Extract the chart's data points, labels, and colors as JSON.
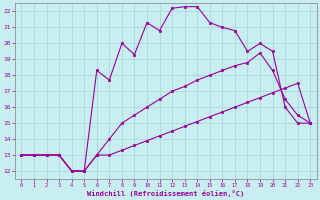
{
  "xlabel": "Windchill (Refroidissement éolien,°C)",
  "bg_color": "#c8eef0",
  "grid_color": "#a8d8dc",
  "line_color": "#990099",
  "x_ticks": [
    0,
    1,
    2,
    3,
    4,
    5,
    6,
    7,
    8,
    9,
    10,
    11,
    12,
    13,
    14,
    15,
    16,
    17,
    18,
    19,
    20,
    21,
    22,
    23
  ],
  "y_ticks": [
    12,
    13,
    14,
    15,
    16,
    17,
    18,
    19,
    20,
    21,
    22
  ],
  "xlim": [
    -0.5,
    23.5
  ],
  "ylim": [
    11.5,
    22.5
  ],
  "line1_x": [
    0,
    1,
    2,
    3,
    4,
    5,
    6,
    7,
    8,
    9,
    10,
    11,
    12,
    13,
    14,
    15,
    16,
    17,
    18,
    19,
    20,
    21,
    22,
    23
  ],
  "line1_y": [
    13,
    13,
    13,
    13,
    12,
    12,
    13,
    13,
    13.3,
    13.6,
    13.9,
    14.2,
    14.5,
    14.8,
    15.1,
    15.4,
    15.7,
    16.0,
    16.3,
    16.6,
    16.9,
    17.2,
    17.5,
    15.0
  ],
  "line2_x": [
    0,
    1,
    2,
    3,
    4,
    5,
    6,
    7,
    8,
    9,
    10,
    11,
    12,
    13,
    14,
    15,
    16,
    17,
    18,
    19,
    20,
    21,
    22,
    23
  ],
  "line2_y": [
    13,
    13,
    13,
    13,
    12,
    12,
    13,
    14,
    15,
    15.5,
    16.0,
    16.5,
    17.0,
    17.3,
    17.7,
    18.0,
    18.3,
    18.6,
    18.8,
    19.4,
    18.3,
    16.5,
    15.5,
    15.0
  ],
  "line3_x": [
    0,
    1,
    2,
    3,
    4,
    5,
    6,
    7,
    8,
    9,
    10,
    11,
    12,
    13,
    14,
    15,
    16,
    17,
    18,
    19,
    20,
    21,
    22,
    23
  ],
  "line3_y": [
    13,
    13,
    13,
    13,
    12,
    12,
    18.3,
    17.7,
    20.0,
    19.3,
    21.3,
    20.8,
    22.2,
    22.3,
    22.3,
    21.3,
    21.0,
    20.8,
    19.5,
    20.0,
    19.5,
    16.0,
    15.0,
    15.0
  ]
}
